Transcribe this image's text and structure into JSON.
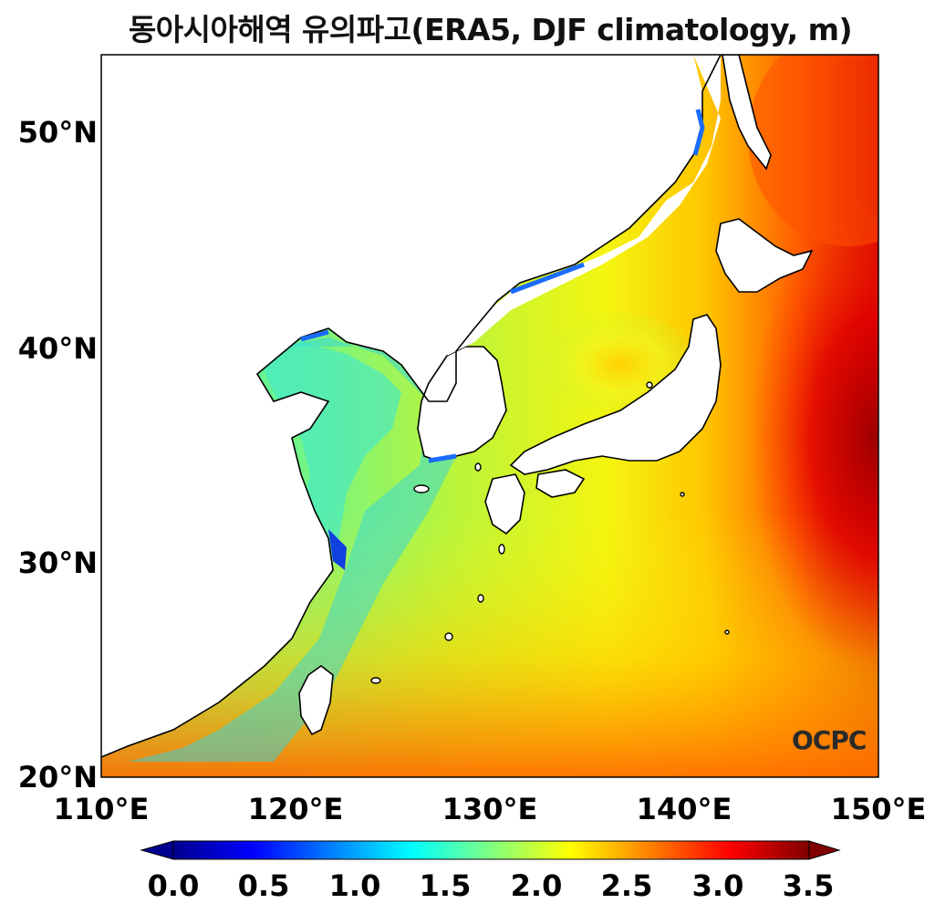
{
  "title": "동아시아해역 유의파고(ERA5, DJF climatology, m)",
  "logo": "OCPC",
  "map": {
    "lon_range": [
      110,
      150
    ],
    "lat_range": [
      20,
      53.5
    ],
    "lat_ticks": [
      "20°N",
      "30°N",
      "40°N",
      "50°N"
    ],
    "lon_ticks": [
      "110°E",
      "120°E",
      "130°E",
      "140°E",
      "150°E"
    ],
    "variable": "significant wave height",
    "colormap": "jet",
    "colorbar_extend": "both"
  },
  "colorbar": {
    "min": 0.0,
    "max": 3.5,
    "tick_labels": [
      "0.0",
      "0.5",
      "1.0",
      "1.5",
      "2.0",
      "2.5",
      "3.0",
      "3.5"
    ]
  }
}
